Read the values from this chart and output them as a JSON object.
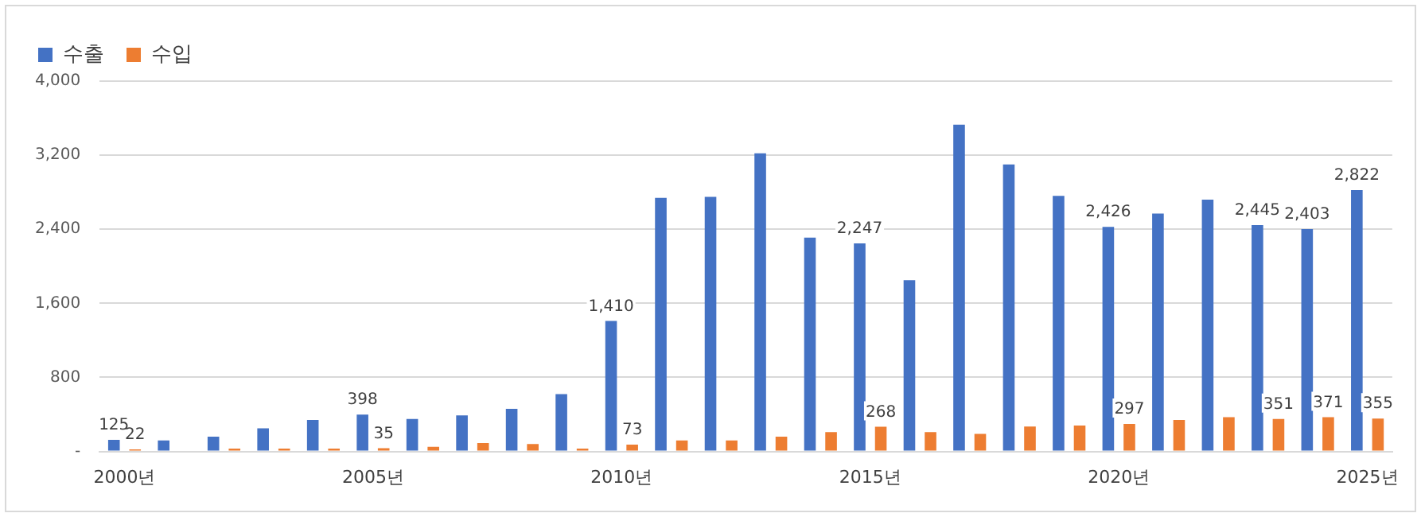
{
  "chart_data": {
    "type": "bar",
    "categories": [
      "2000년",
      null,
      null,
      null,
      null,
      "2005년",
      null,
      null,
      null,
      null,
      "2010년",
      null,
      null,
      null,
      null,
      "2015년",
      null,
      null,
      null,
      null,
      "2020년",
      null,
      null,
      null,
      null,
      "2025년"
    ],
    "series": [
      {
        "name": "수출",
        "color": "#4472c4",
        "values": [
          125,
          120,
          160,
          250,
          340,
          398,
          350,
          390,
          460,
          620,
          1410,
          2740,
          2750,
          3220,
          2310,
          2247,
          1850,
          3530,
          3100,
          2760,
          2426,
          2570,
          2720,
          2445,
          2403,
          2822
        ],
        "value_labels": [
          "125",
          null,
          null,
          null,
          null,
          "398",
          null,
          null,
          null,
          null,
          "1,410",
          null,
          null,
          null,
          null,
          "2,247",
          null,
          null,
          null,
          null,
          "2,426",
          null,
          null,
          "2,445",
          "2,403",
          "2,822"
        ]
      },
      {
        "name": "수입",
        "color": "#ed7d31",
        "values": [
          22,
          0,
          30,
          30,
          30,
          35,
          50,
          90,
          80,
          30,
          73,
          120,
          120,
          160,
          210,
          268,
          210,
          190,
          270,
          280,
          297,
          340,
          370,
          351,
          371,
          355
        ],
        "value_labels": [
          "22",
          null,
          null,
          null,
          null,
          "35",
          null,
          null,
          null,
          null,
          "73",
          null,
          null,
          null,
          null,
          "268",
          null,
          null,
          null,
          null,
          "297",
          null,
          null,
          "351",
          "371",
          "355"
        ]
      }
    ],
    "ylim": [
      0,
      4000
    ],
    "yticks": [
      {
        "value": 0,
        "label": "-"
      },
      800,
      {
        "value": 1600,
        "label": "1,600"
      },
      {
        "value": 2400,
        "label": "2,400"
      },
      {
        "value": 3200,
        "label": "3,200"
      },
      {
        "value": 4000,
        "label": "4,000"
      }
    ],
    "grid": "y",
    "legend": "top left"
  }
}
